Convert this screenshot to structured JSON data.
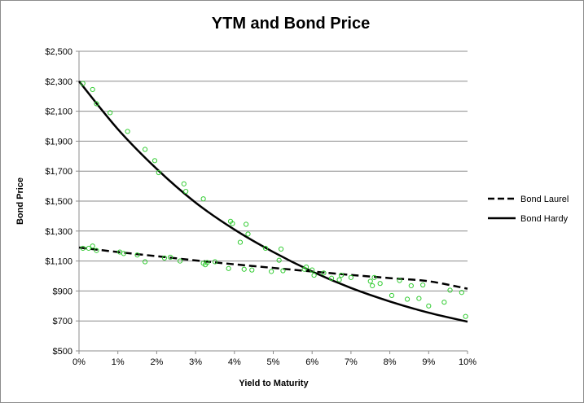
{
  "chart_data": {
    "type": "line",
    "title": "YTM and Bond Price",
    "xlabel": "Yield to Maturity",
    "ylabel": "Bond Price",
    "xlim": [
      0,
      10
    ],
    "ylim": [
      500,
      2500
    ],
    "x_ticks": [
      0,
      1,
      2,
      3,
      4,
      5,
      6,
      7,
      8,
      9,
      10
    ],
    "x_tick_labels": [
      "0%",
      "1%",
      "2%",
      "3%",
      "4%",
      "5%",
      "6%",
      "7%",
      "8%",
      "9%",
      "10%"
    ],
    "y_ticks": [
      500,
      700,
      900,
      1100,
      1300,
      1500,
      1700,
      1900,
      2100,
      2300,
      2500
    ],
    "y_tick_labels": [
      "$500",
      "$700",
      "$900",
      "$1,100",
      "$1,300",
      "$1,500",
      "$1,700",
      "$1,900",
      "$2,100",
      "$2,300",
      "$2,500"
    ],
    "grid": "horizontal",
    "legend_position": "right",
    "series": [
      {
        "name": "Bond Laurel",
        "style": "dashed",
        "color": "#000000",
        "x": [
          0,
          1,
          2,
          3,
          4,
          5,
          6,
          7,
          8,
          9,
          10
        ],
        "values": [
          1190,
          1160,
          1132,
          1104,
          1078,
          1054,
          1030,
          1007,
          986,
          965,
          915
        ]
      },
      {
        "name": "Bond Hardy",
        "style": "solid",
        "color": "#000000",
        "x": [
          0,
          1,
          2,
          3,
          4,
          5,
          6,
          7,
          8,
          9,
          10
        ],
        "values": [
          2300,
          1980,
          1715,
          1490,
          1310,
          1160,
          1030,
          920,
          830,
          755,
          695
        ]
      },
      {
        "name": "",
        "style": "scatter",
        "color": "#33cc33",
        "points": [
          [
            0.1,
            2285
          ],
          [
            0.35,
            2245
          ],
          [
            0.45,
            2150
          ],
          [
            0.8,
            2090
          ],
          [
            1.25,
            1965
          ],
          [
            1.7,
            1845
          ],
          [
            1.95,
            1770
          ],
          [
            2.05,
            1690
          ],
          [
            2.7,
            1615
          ],
          [
            2.75,
            1565
          ],
          [
            3.2,
            1515
          ],
          [
            3.9,
            1365
          ],
          [
            3.95,
            1350
          ],
          [
            4.15,
            1225
          ],
          [
            4.3,
            1345
          ],
          [
            4.35,
            1280
          ],
          [
            4.8,
            1185
          ],
          [
            5.2,
            1180
          ],
          [
            5.15,
            1105
          ],
          [
            5.85,
            1060
          ],
          [
            6.0,
            1040
          ],
          [
            6.5,
            985
          ],
          [
            6.7,
            975
          ],
          [
            7.55,
            935
          ],
          [
            7.6,
            990
          ],
          [
            8.05,
            870
          ],
          [
            8.45,
            845
          ],
          [
            8.75,
            850
          ],
          [
            9.0,
            800
          ],
          [
            9.4,
            825
          ],
          [
            9.95,
            730
          ],
          [
            0.1,
            1185
          ],
          [
            0.25,
            1185
          ],
          [
            0.35,
            1200
          ],
          [
            0.45,
            1170
          ],
          [
            1.05,
            1160
          ],
          [
            1.15,
            1150
          ],
          [
            1.5,
            1140
          ],
          [
            1.7,
            1095
          ],
          [
            2.2,
            1120
          ],
          [
            2.35,
            1125
          ],
          [
            2.6,
            1100
          ],
          [
            3.2,
            1085
          ],
          [
            3.25,
            1075
          ],
          [
            3.3,
            1090
          ],
          [
            3.5,
            1095
          ],
          [
            3.85,
            1050
          ],
          [
            4.25,
            1045
          ],
          [
            4.45,
            1040
          ],
          [
            4.95,
            1030
          ],
          [
            5.25,
            1035
          ],
          [
            5.8,
            1045
          ],
          [
            6.05,
            1005
          ],
          [
            6.3,
            1020
          ],
          [
            6.75,
            1005
          ],
          [
            7.0,
            990
          ],
          [
            7.5,
            965
          ],
          [
            7.75,
            950
          ],
          [
            8.25,
            970
          ],
          [
            8.55,
            935
          ],
          [
            8.85,
            940
          ],
          [
            9.55,
            905
          ],
          [
            9.85,
            890
          ]
        ]
      }
    ]
  }
}
